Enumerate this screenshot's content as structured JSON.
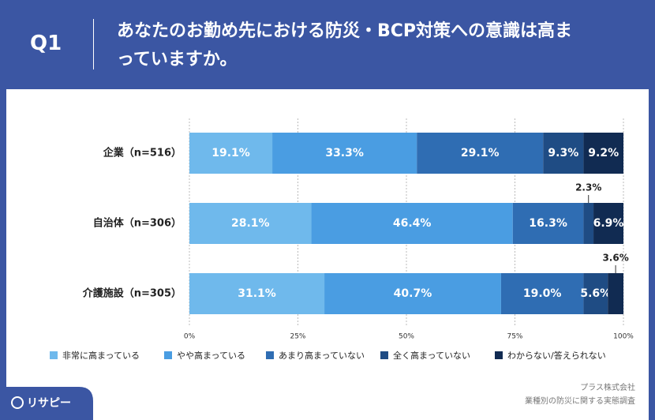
{
  "header": {
    "question": "Q1",
    "title": "あなたのお勤め先における防災・BCP対策への意識は高まっていますか。"
  },
  "chart_data": {
    "type": "stacked-bar-horizontal",
    "categories": [
      "企業（n=516）",
      "自治体（n=306）",
      "介護施設（n=305）"
    ],
    "series": [
      {
        "name": "非常に高まっている",
        "color": "#6fb9ec",
        "values": [
          19.1,
          28.1,
          31.1
        ],
        "value_labels": [
          "19.1%",
          "28.1%",
          "31.1%"
        ]
      },
      {
        "name": "やや高まっている",
        "color": "#4a9de2",
        "values": [
          33.3,
          46.4,
          40.7
        ],
        "value_labels": [
          "33.3%",
          "46.4%",
          "40.7%"
        ]
      },
      {
        "name": "あまり高まっていない",
        "color": "#2f6db3",
        "values": [
          29.1,
          16.3,
          19.0
        ],
        "value_labels": [
          "29.1%",
          "16.3%",
          "19.0%"
        ]
      },
      {
        "name": "全く高まっていない",
        "color": "#1f4c84",
        "values": [
          9.3,
          2.3,
          5.6
        ],
        "value_labels": [
          "9.3%",
          "2.3%",
          "5.6%"
        ]
      },
      {
        "name": "わからない/答えられない",
        "color": "#112b52",
        "values": [
          9.2,
          6.9,
          3.6
        ],
        "value_labels": [
          "9.2%",
          "6.9%",
          "3.6%"
        ]
      }
    ],
    "xlim": [
      0,
      100
    ],
    "xticks": [
      {
        "value": 0,
        "label": "0%"
      },
      {
        "value": 25,
        "label": "25%"
      },
      {
        "value": 50,
        "label": "50%"
      },
      {
        "value": 75,
        "label": "75%"
      },
      {
        "value": 100,
        "label": "100%"
      }
    ],
    "grid": true,
    "legend": "bottom"
  },
  "footer": {
    "logo": "リサピー",
    "company": "プラス株式会社",
    "survey": "業種別の防災に関する実態調査"
  }
}
